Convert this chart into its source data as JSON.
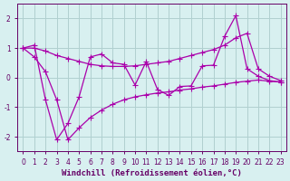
{
  "x": [
    0,
    1,
    2,
    3,
    4,
    5,
    6,
    7,
    8,
    9,
    10,
    11,
    12,
    13,
    14,
    15,
    16,
    17,
    18,
    19,
    20,
    21,
    22,
    23
  ],
  "y_zigzag": [
    1.0,
    1.1,
    -0.75,
    -2.1,
    -1.55,
    -0.65,
    0.7,
    0.8,
    0.5,
    0.45,
    -0.25,
    0.55,
    -0.4,
    -0.6,
    -0.3,
    -0.28,
    0.4,
    0.42,
    1.4,
    2.1,
    0.3,
    0.05,
    -0.1,
    -0.15
  ],
  "y_upper": [
    1.0,
    1.0,
    0.9,
    0.75,
    0.65,
    0.55,
    0.45,
    0.4,
    0.38,
    0.38,
    0.4,
    0.45,
    0.5,
    0.55,
    0.65,
    0.75,
    0.85,
    0.95,
    1.1,
    1.35,
    1.5,
    0.3,
    0.05,
    -0.1
  ],
  "y_lower": [
    1.0,
    0.7,
    0.2,
    -0.75,
    -2.1,
    -1.7,
    -1.35,
    -1.1,
    -0.9,
    -0.75,
    -0.65,
    -0.58,
    -0.52,
    -0.48,
    -0.42,
    -0.38,
    -0.32,
    -0.28,
    -0.22,
    -0.16,
    -0.12,
    -0.08,
    -0.12,
    -0.15
  ],
  "line_color": "#aa00aa",
  "marker": "+",
  "marker_size": 4,
  "linewidth": 0.9,
  "bg_color": "#d8f0f0",
  "grid_color": "#b0d0d0",
  "xlabel": "Windchill (Refroidissement éolien,°C)",
  "xlabel_fontsize": 6.5,
  "xlim": [
    -0.5,
    23.5
  ],
  "ylim": [
    -2.5,
    2.5
  ],
  "yticks": [
    -2,
    -1,
    0,
    1,
    2
  ],
  "xticks": [
    0,
    1,
    2,
    3,
    4,
    5,
    6,
    7,
    8,
    9,
    10,
    11,
    12,
    13,
    14,
    15,
    16,
    17,
    18,
    19,
    20,
    21,
    22,
    23
  ],
  "tick_fontsize": 5.5,
  "axis_color": "#660066"
}
